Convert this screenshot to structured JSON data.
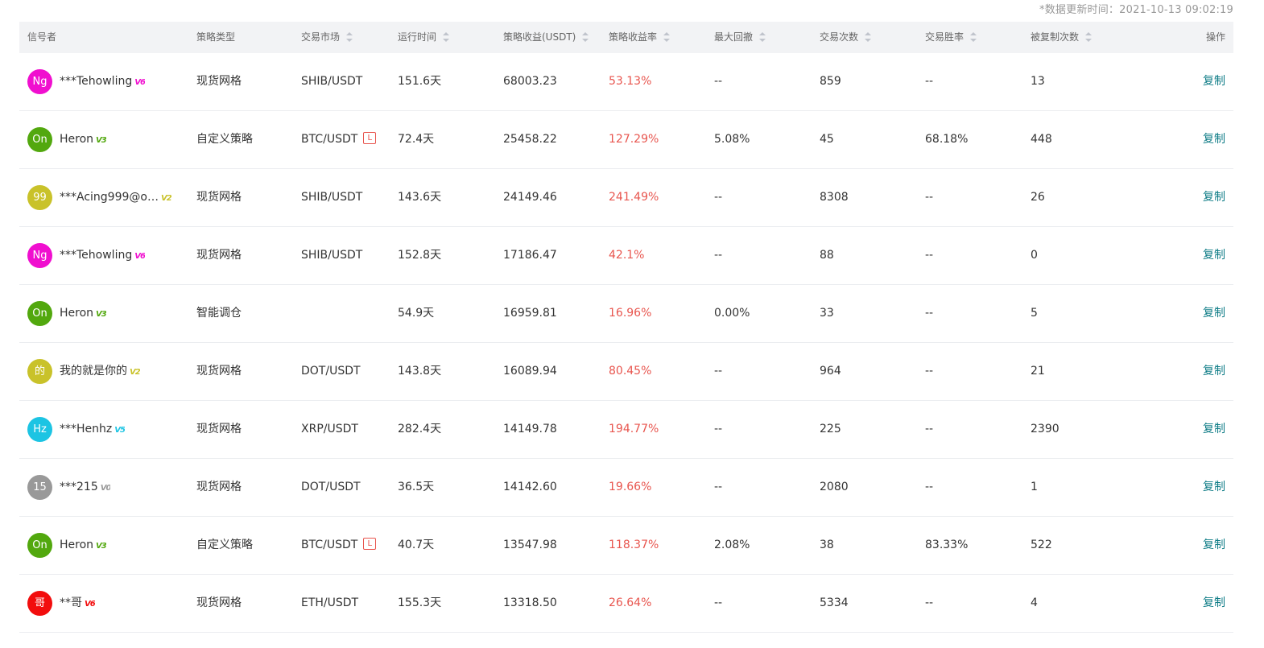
{
  "header": {
    "update_time": "*数据更新时间：2021-10-13 09:02:19"
  },
  "columns": [
    {
      "label": "信号者",
      "sortable": false
    },
    {
      "label": "策略类型",
      "sortable": false
    },
    {
      "label": "交易市场",
      "sortable": true
    },
    {
      "label": "运行时间",
      "sortable": true
    },
    {
      "label": "策略收益(USDT)",
      "sortable": true
    },
    {
      "label": "策略收益率",
      "sortable": true
    },
    {
      "label": "最大回撤",
      "sortable": true
    },
    {
      "label": "交易次数",
      "sortable": true
    },
    {
      "label": "交易胜率",
      "sortable": true
    },
    {
      "label": "被复制次数",
      "sortable": true
    },
    {
      "label": "操作",
      "sortable": false
    }
  ],
  "rows": [
    {
      "avatar": "Ng",
      "avatar_color": "#f00fcf",
      "name": "***Tehowling",
      "vip": "V6",
      "vip_color": "#f00fcf",
      "type": "现货网格",
      "market": "SHIB/USDT",
      "leverage": "",
      "runtime": "151.6天",
      "profit": "68003.23",
      "rate": "53.13%",
      "drawdown": "--",
      "trades": "859",
      "win_rate": "--",
      "copies": "13",
      "action": "复制"
    },
    {
      "avatar": "On",
      "avatar_color": "#52a80e",
      "name": "Heron",
      "vip": "V3",
      "vip_color": "#52a80e",
      "type": "自定义策略",
      "market": "BTC/USDT",
      "leverage": "L",
      "runtime": "72.4天",
      "profit": "25458.22",
      "rate": "127.29%",
      "drawdown": "5.08%",
      "trades": "45",
      "win_rate": "68.18%",
      "copies": "448",
      "action": "复制"
    },
    {
      "avatar": "99",
      "avatar_color": "#c9c22a",
      "name": "***Acing999@o…",
      "vip": "V2",
      "vip_color": "#c9c22a",
      "type": "现货网格",
      "market": "SHIB/USDT",
      "leverage": "",
      "runtime": "143.6天",
      "profit": "24149.46",
      "rate": "241.49%",
      "drawdown": "--",
      "trades": "8308",
      "win_rate": "--",
      "copies": "26",
      "action": "复制"
    },
    {
      "avatar": "Ng",
      "avatar_color": "#f00fcf",
      "name": "***Tehowling",
      "vip": "V6",
      "vip_color": "#f00fcf",
      "type": "现货网格",
      "market": "SHIB/USDT",
      "leverage": "",
      "runtime": "152.8天",
      "profit": "17186.47",
      "rate": "42.1%",
      "drawdown": "--",
      "trades": "88",
      "win_rate": "--",
      "copies": "0",
      "action": "复制"
    },
    {
      "avatar": "On",
      "avatar_color": "#52a80e",
      "name": "Heron",
      "vip": "V3",
      "vip_color": "#52a80e",
      "type": "智能调仓",
      "market": "",
      "leverage": "",
      "runtime": "54.9天",
      "profit": "16959.81",
      "rate": "16.96%",
      "drawdown": "0.00%",
      "trades": "33",
      "win_rate": "--",
      "copies": "5",
      "action": "复制"
    },
    {
      "avatar": "的",
      "avatar_color": "#c9c22a",
      "name": "我的就是你的",
      "vip": "V2",
      "vip_color": "#c9c22a",
      "type": "现货网格",
      "market": "DOT/USDT",
      "leverage": "",
      "runtime": "143.8天",
      "profit": "16089.94",
      "rate": "80.45%",
      "drawdown": "--",
      "trades": "964",
      "win_rate": "--",
      "copies": "21",
      "action": "复制"
    },
    {
      "avatar": "Hz",
      "avatar_color": "#1cc4e3",
      "name": "***Henhz",
      "vip": "V5",
      "vip_color": "#1cc4e3",
      "type": "现货网格",
      "market": "XRP/USDT",
      "leverage": "",
      "runtime": "282.4天",
      "profit": "14149.78",
      "rate": "194.77%",
      "drawdown": "--",
      "trades": "225",
      "win_rate": "--",
      "copies": "2390",
      "action": "复制"
    },
    {
      "avatar": "15",
      "avatar_color": "#999999",
      "name": "***215",
      "vip": "V0",
      "vip_color": "#999999",
      "type": "现货网格",
      "market": "DOT/USDT",
      "leverage": "",
      "runtime": "36.5天",
      "profit": "14142.60",
      "rate": "19.66%",
      "drawdown": "--",
      "trades": "2080",
      "win_rate": "--",
      "copies": "1",
      "action": "复制"
    },
    {
      "avatar": "On",
      "avatar_color": "#52a80e",
      "name": "Heron",
      "vip": "V3",
      "vip_color": "#52a80e",
      "type": "自定义策略",
      "market": "BTC/USDT",
      "leverage": "L",
      "runtime": "40.7天",
      "profit": "13547.98",
      "rate": "118.37%",
      "drawdown": "2.08%",
      "trades": "38",
      "win_rate": "83.33%",
      "copies": "522",
      "action": "复制"
    },
    {
      "avatar": "哥",
      "avatar_color": "#f20d0d",
      "name": "**哥",
      "vip": "V6",
      "vip_color": "#f20d0d",
      "type": "现货网格",
      "market": "ETH/USDT",
      "leverage": "",
      "runtime": "155.3天",
      "profit": "13318.50",
      "rate": "26.64%",
      "drawdown": "--",
      "trades": "5334",
      "win_rate": "--",
      "copies": "4",
      "action": "复制"
    }
  ]
}
